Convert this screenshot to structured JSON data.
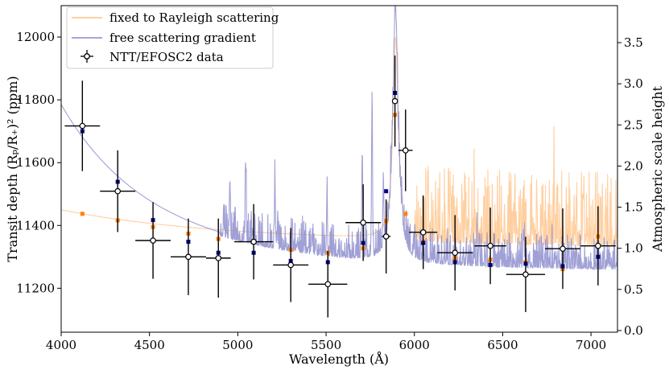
{
  "chart_data": {
    "type": "line",
    "xlabel": "Wavelength (Å)",
    "ylabel": "Transit depth (Rₚ/R₊)² (ppm)",
    "y2label": "Atmospheric scale height",
    "xlim": [
      4000,
      7150
    ],
    "ylim": [
      11060,
      12100
    ],
    "y2lim": [
      -0.02,
      3.95
    ],
    "x_ticks": [
      4000,
      4500,
      5000,
      5500,
      6000,
      6500,
      7000
    ],
    "y_ticks": [
      11200,
      11400,
      11600,
      11800,
      12000
    ],
    "y2_ticks": [
      0.0,
      0.5,
      1.0,
      1.5,
      2.0,
      2.5,
      3.0,
      3.5
    ],
    "y2_tick_labels": [
      "0.0",
      "0.5",
      "1.0",
      "1.5",
      "2.0",
      "2.5",
      "3.0",
      "3.5"
    ],
    "legend": {
      "position": "top-left",
      "entries": [
        {
          "label": "fixed to Rayleigh scattering",
          "color": "#ffbf80",
          "kind": "line"
        },
        {
          "label": "free scattering gradient",
          "color": "#8888cc",
          "kind": "line"
        },
        {
          "label": "NTT/EFOSC2 data",
          "color": "#000000",
          "kind": "errorbar"
        }
      ]
    },
    "series": [
      {
        "name": "fixed to Rayleigh scattering",
        "color": "#ffbf80",
        "model": {
          "base": {
            "type": "rayleigh",
            "intercept_ppm": 11335,
            "scale_ppm": 115,
            "ref_wavelength": 4000
          },
          "sodium": {
            "center": 5893,
            "height_ppm": 640,
            "width": 18
          },
          "noise_start": 6000,
          "noise_amplitude_ppm": 240,
          "noise_seed": 17,
          "step": 2
        },
        "binned": {
          "color": "#ff7f0e",
          "x": [
            4120,
            4320,
            4520,
            4720,
            4890,
            5090,
            5300,
            5510,
            5710,
            5840,
            5890,
            5950,
            6050,
            6230,
            6430,
            6630,
            6840,
            7040
          ],
          "y": [
            11437,
            11416,
            11395,
            11374,
            11357,
            11348,
            11322,
            11313,
            11327,
            11414,
            11752,
            11437,
            11348,
            11296,
            11291,
            11283,
            11261,
            11365
          ]
        }
      },
      {
        "name": "free scattering gradient",
        "color": "#8888cc",
        "model": {
          "base": {
            "type": "powerlaw",
            "floor_ppm": 11265,
            "amplitude_ppm": 520,
            "exponent": 7.5,
            "ref_wavelength": 4000
          },
          "sodium": {
            "center": 5893,
            "height_ppm": 800,
            "width": 18
          },
          "spikes": [
            {
              "x": 4955,
              "height_ppm": 190
            },
            {
              "x": 5045,
              "height_ppm": 240
            },
            {
              "x": 5210,
              "height_ppm": 210
            },
            {
              "x": 5505,
              "height_ppm": 160
            },
            {
              "x": 5705,
              "height_ppm": 260
            },
            {
              "x": 5760,
              "height_ppm": 440
            },
            {
              "x": 5825,
              "height_ppm": 190
            },
            {
              "x": 6620,
              "height_ppm": 90
            }
          ],
          "noise_start": 4900,
          "noise_amplitude_ppm": 110,
          "noise_seed": 5,
          "step": 2
        },
        "binned": {
          "color": "#00008b",
          "x": [
            4120,
            4320,
            4520,
            4720,
            4890,
            5090,
            5300,
            5510,
            5710,
            5840,
            5890,
            5950,
            6050,
            6230,
            6430,
            6630,
            6840,
            7040
          ],
          "y": [
            11700,
            11539,
            11417,
            11348,
            11313,
            11313,
            11287,
            11283,
            11344,
            11509,
            11822,
            11639,
            11344,
            11283,
            11274,
            11278,
            11270,
            11300
          ]
        }
      },
      {
        "name": "NTT/EFOSC2 data",
        "color": "#000000",
        "points": [
          {
            "x": 4120,
            "y": 11717,
            "xerr": 100,
            "yerr": 144
          },
          {
            "x": 4320,
            "y": 11509,
            "xerr": 100,
            "yerr": 130
          },
          {
            "x": 4520,
            "y": 11352,
            "xerr": 100,
            "yerr": 122
          },
          {
            "x": 4720,
            "y": 11300,
            "xerr": 100,
            "yerr": 122
          },
          {
            "x": 4890,
            "y": 11296,
            "xerr": 70,
            "yerr": 126
          },
          {
            "x": 5090,
            "y": 11348,
            "xerr": 110,
            "yerr": 120
          },
          {
            "x": 5300,
            "y": 11274,
            "xerr": 100,
            "yerr": 118
          },
          {
            "x": 5510,
            "y": 11213,
            "xerr": 110,
            "yerr": 106
          },
          {
            "x": 5710,
            "y": 11409,
            "xerr": 100,
            "yerr": 122
          },
          {
            "x": 5840,
            "y": 11365,
            "xerr": 25,
            "yerr": 118
          },
          {
            "x": 5890,
            "y": 11796,
            "xerr": 15,
            "yerr": 145
          },
          {
            "x": 5950,
            "y": 11639,
            "xerr": 40,
            "yerr": 130
          },
          {
            "x": 6050,
            "y": 11378,
            "xerr": 80,
            "yerr": 117
          },
          {
            "x": 6230,
            "y": 11313,
            "xerr": 100,
            "yerr": 120
          },
          {
            "x": 6430,
            "y": 11335,
            "xerr": 90,
            "yerr": 122
          },
          {
            "x": 6630,
            "y": 11244,
            "xerr": 110,
            "yerr": 120
          },
          {
            "x": 6840,
            "y": 11326,
            "xerr": 100,
            "yerr": 128
          },
          {
            "x": 7040,
            "y": 11335,
            "xerr": 100,
            "yerr": 126
          }
        ]
      }
    ]
  }
}
